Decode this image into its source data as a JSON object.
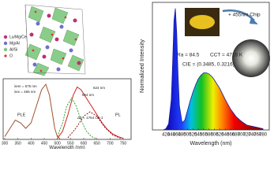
{
  "structure_legend": [
    "Lu/Mg/Ce",
    "Mg/Al",
    "Al/Si",
    "O"
  ],
  "chart_data": [
    {
      "type": "line",
      "xlabel": "Wavelength (nm)",
      "xlim": [
        294,
        780
      ],
      "ylim": [
        0,
        1.1
      ],
      "xticks": [
        300,
        350,
        400,
        450,
        500,
        550,
        600,
        650,
        700,
        750
      ],
      "annotations": [
        "λem = 575 nm",
        "λex = 456 nm",
        "624 nm",
        "554 nm",
        "ΔE = 1764 cm-1"
      ],
      "series": [
        {
          "name": "PLE",
          "color": "#a0522d",
          "dashed": false,
          "x": [
            300,
            320,
            340,
            360,
            380,
            400,
            420,
            440,
            456,
            470,
            480,
            490,
            500,
            510
          ],
          "values": [
            0.05,
            0.2,
            0.35,
            0.3,
            0.2,
            0.3,
            0.6,
            0.9,
            1.0,
            0.8,
            0.5,
            0.2,
            0.05,
            0.01
          ]
        },
        {
          "name": "PL",
          "color": "#d42020",
          "dashed": false,
          "x": [
            500,
            520,
            540,
            560,
            575,
            590,
            610,
            630,
            650,
            670,
            690,
            710,
            730,
            750
          ],
          "values": [
            0.02,
            0.15,
            0.45,
            0.8,
            0.95,
            0.9,
            0.75,
            0.6,
            0.45,
            0.3,
            0.18,
            0.1,
            0.05,
            0.02
          ]
        },
        {
          "color": "#2e9e2e",
          "dashed": true,
          "x": [
            500,
            520,
            535,
            554,
            570,
            590,
            610,
            630,
            650
          ],
          "values": [
            0.05,
            0.3,
            0.6,
            0.75,
            0.62,
            0.35,
            0.15,
            0.05,
            0.01
          ]
        },
        {
          "color": "#8b1a1a",
          "dashed": true,
          "x": [
            540,
            570,
            600,
            624,
            650,
            680,
            710,
            740
          ],
          "values": [
            0.03,
            0.2,
            0.42,
            0.5,
            0.42,
            0.22,
            0.08,
            0.02
          ]
        }
      ]
    },
    {
      "type": "area",
      "xlabel": "Wavelength (nm)",
      "ylabel": "Normalized Intensity",
      "xlim": [
        370,
        803
      ],
      "ylim": [
        0,
        1.05
      ],
      "xticks": [
        420,
        440,
        460,
        480,
        500,
        520,
        540,
        560,
        580,
        600,
        620,
        640,
        660,
        680,
        700,
        720,
        740,
        760,
        780
      ],
      "annotations": [
        "+ 455nm Chip",
        "Ra = 84.5",
        "CCT = 4718 K",
        "CIE = (0.3485, 0.3216)"
      ],
      "series": [
        {
          "color": "#1a1aa0",
          "x": [
            410,
            420,
            430,
            440,
            445,
            450,
            455,
            460,
            465,
            470,
            480,
            490,
            500,
            510,
            520,
            530,
            540,
            550,
            560,
            570,
            580,
            590,
            600,
            620,
            640,
            660,
            680,
            700,
            720,
            740,
            760,
            780
          ],
          "values": [
            0,
            0.01,
            0.05,
            0.25,
            0.55,
            0.9,
            1.0,
            0.8,
            0.45,
            0.2,
            0.06,
            0.08,
            0.16,
            0.24,
            0.31,
            0.37,
            0.42,
            0.45,
            0.47,
            0.47,
            0.46,
            0.44,
            0.41,
            0.34,
            0.25,
            0.17,
            0.11,
            0.07,
            0.04,
            0.03,
            0.02,
            0.01
          ]
        }
      ]
    }
  ]
}
